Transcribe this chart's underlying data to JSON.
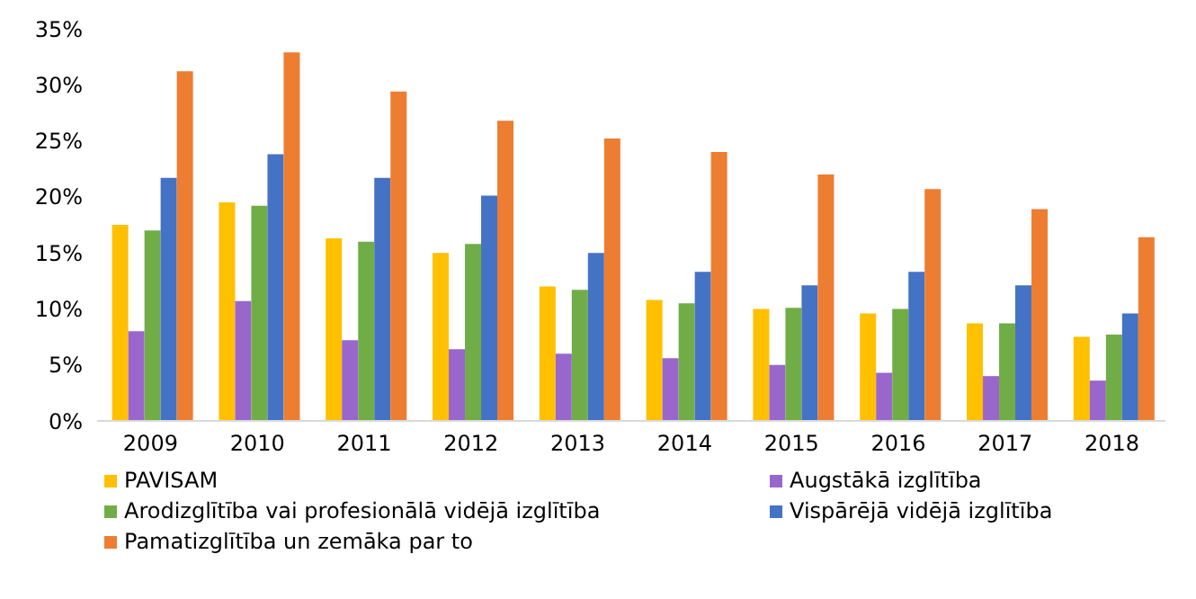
{
  "chart_data": {
    "type": "bar",
    "categories": [
      "2009",
      "2010",
      "2011",
      "2012",
      "2013",
      "2014",
      "2015",
      "2016",
      "2017",
      "2018"
    ],
    "series": [
      {
        "name": "PAVISAM",
        "color": "#ffc000",
        "values": [
          17.5,
          19.5,
          16.3,
          15,
          12,
          10.8,
          10,
          9.6,
          8.7,
          7.5
        ]
      },
      {
        "name": "Augstākā izglītība",
        "color": "#9966cc",
        "values": [
          8,
          10.7,
          7.2,
          6.4,
          6,
          5.6,
          5,
          4.3,
          4,
          3.6
        ]
      },
      {
        "name": "Arodizglītība vai profesionālā vidējā izglītība",
        "color": "#70ad47",
        "values": [
          17,
          19.2,
          16,
          15.8,
          11.7,
          10.5,
          10.1,
          10,
          8.7,
          7.7
        ]
      },
      {
        "name": "Vispārējā vidējā izglītība",
        "color": "#4472c4",
        "values": [
          21.7,
          23.8,
          21.7,
          20.1,
          15,
          13.3,
          12.1,
          13.3,
          12.1,
          9.6
        ]
      },
      {
        "name": "Pamatizglītība un zemāka par to",
        "color": "#ed7d31",
        "values": [
          31.2,
          32.9,
          29.4,
          26.8,
          25.2,
          24,
          22,
          20.7,
          18.9,
          16.4
        ]
      }
    ],
    "ylim": [
      0,
      35
    ],
    "yticks": [
      {
        "value": 0,
        "label": "0%"
      },
      {
        "value": 5,
        "label": "5%"
      },
      {
        "value": 10,
        "label": "10%"
      },
      {
        "value": 15,
        "label": "15%"
      },
      {
        "value": 20,
        "label": "20%"
      },
      {
        "value": 25,
        "label": "25%"
      },
      {
        "value": 30,
        "label": "30%"
      },
      {
        "value": 35,
        "label": "35%"
      }
    ],
    "grid": false,
    "legend": "bottom"
  }
}
